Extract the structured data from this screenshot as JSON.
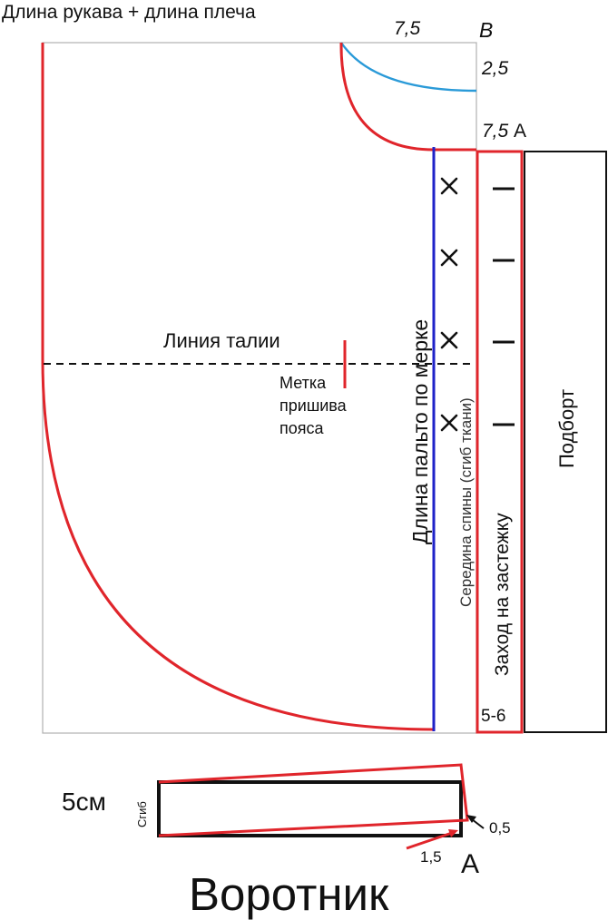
{
  "header_title": "Длина рукава + длина плеча",
  "top_measure": "7,5",
  "label_v": "В",
  "measure_right_top": "2,5",
  "measure_a_value": "7,5",
  "label_a_top": "А",
  "waist_line": "Линия талии",
  "belt_mark_line1": "Метка",
  "belt_mark_line2": "пришива",
  "belt_mark_line3": "пояса",
  "coat_length": "Длина пальто по мерке",
  "back_center": "Середина спины (сгиб ткани)",
  "fastener_overlap": "Заход на застежку",
  "facing": "Подборт",
  "bottom_measure": "5-6",
  "collar_width": "5см",
  "collar_fold": "Сгиб",
  "collar_offset_right": "0,5",
  "collar_offset_bottom": "1,5",
  "label_a_collar": "А",
  "collar_title": "Воротник",
  "colors": {
    "red": "#e0252b",
    "blue": "#1f22c8",
    "light_blue": "#2a9ad8",
    "grey": "#b0b0b0",
    "black": "#111111"
  }
}
